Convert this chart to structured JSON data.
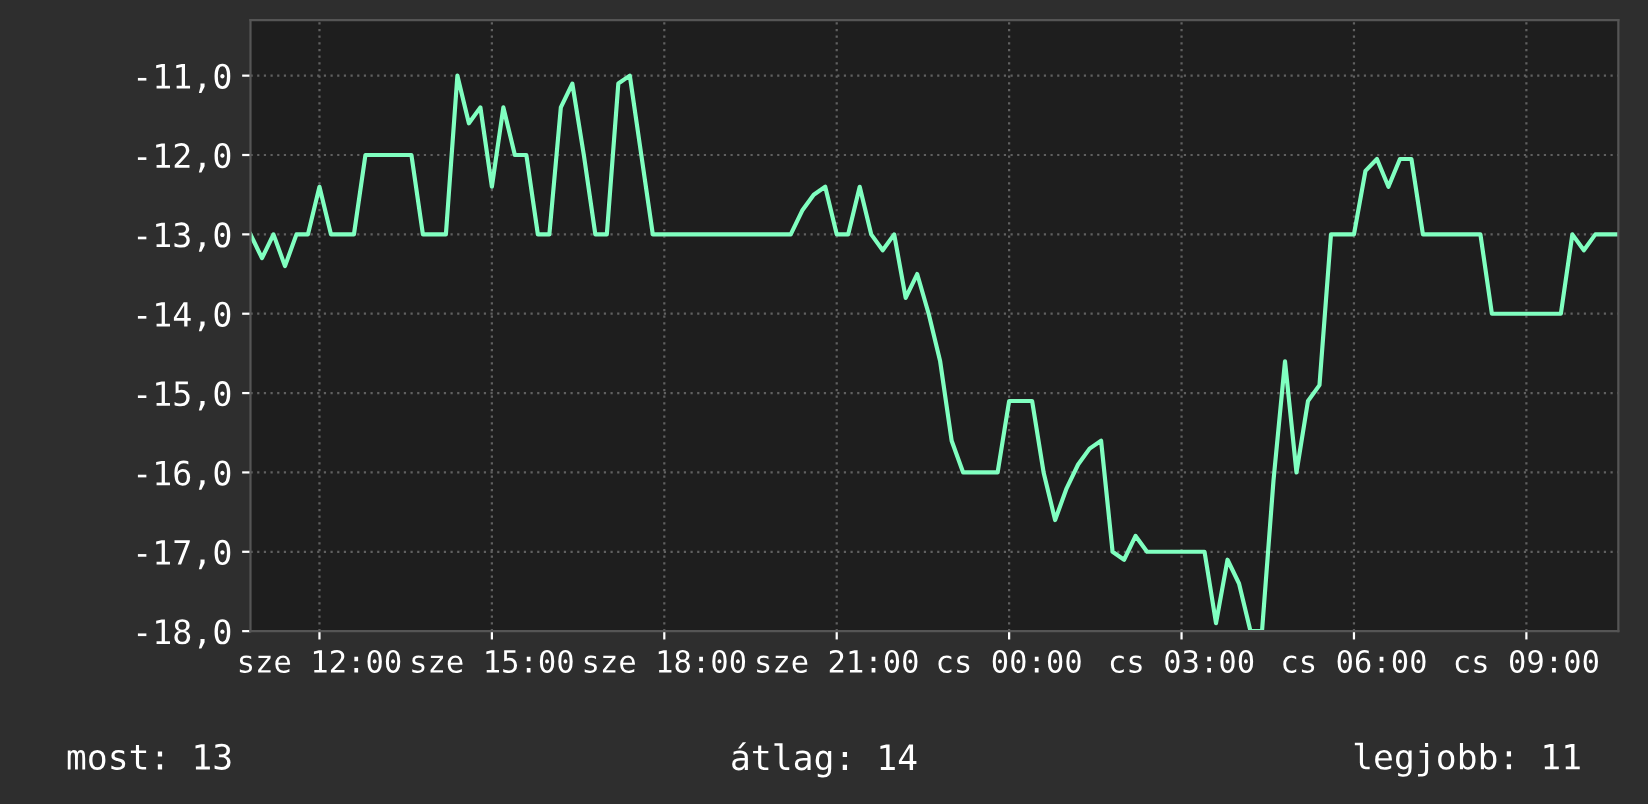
{
  "chart_data": {
    "type": "line",
    "color": "#80ffc0",
    "categories": [
      null,
      null,
      null,
      null,
      null,
      null,
      "sze 12:00",
      null,
      null,
      null,
      null,
      null,
      null,
      null,
      null,
      null,
      null,
      null,
      null,
      null,
      null,
      "sze 15:00",
      null,
      null,
      null,
      null,
      null,
      null,
      null,
      null,
      null,
      null,
      null,
      null,
      null,
      null,
      "sze 18:00",
      null,
      null,
      null,
      null,
      null,
      null,
      null,
      null,
      null,
      null,
      null,
      null,
      null,
      null,
      "sze 21:00",
      null,
      null,
      null,
      null,
      null,
      null,
      null,
      null,
      null,
      null,
      null,
      null,
      null,
      null,
      "cs 00:00",
      null,
      null,
      null,
      null,
      null,
      null,
      null,
      null,
      null,
      null,
      null,
      null,
      null,
      null,
      "cs 03:00",
      null,
      null,
      null,
      null,
      null,
      null,
      null,
      null,
      null,
      null,
      null,
      null,
      null,
      null,
      "cs 06:00",
      null,
      null,
      null,
      null,
      null,
      null,
      null,
      null,
      null,
      null,
      null,
      null,
      null,
      null,
      "cs 09:00",
      null,
      null,
      null,
      null,
      null,
      null,
      null,
      null
    ],
    "values": [
      -13.0,
      -13.3,
      -13.0,
      -13.4,
      -13.0,
      -13.0,
      -12.4,
      -13.0,
      -13.0,
      -13.0,
      -12.0,
      -12.0,
      -12.0,
      -12.0,
      -12.0,
      -13.0,
      -13.0,
      -13.0,
      -11.0,
      -11.6,
      -11.4,
      -12.4,
      -11.4,
      -12.0,
      -12.0,
      -13.0,
      -13.0,
      -11.4,
      -11.1,
      -12.0,
      -13.0,
      -13.0,
      -11.1,
      -11.0,
      -12.0,
      -13.0,
      -13.0,
      -13.0,
      -13.0,
      -13.0,
      -13.0,
      -13.0,
      -13.0,
      -13.0,
      -13.0,
      -13.0,
      -13.0,
      -13.0,
      -12.7,
      -12.5,
      -12.4,
      -13.0,
      -13.0,
      -12.4,
      -13.0,
      -13.2,
      -13.0,
      -13.8,
      -13.5,
      -14.0,
      -14.6,
      -15.6,
      -16.0,
      -16.0,
      -16.0,
      -16.0,
      -15.1,
      -15.1,
      -15.1,
      -16.0,
      -16.6,
      -16.2,
      -15.9,
      -15.7,
      -15.6,
      -17.0,
      -17.1,
      -16.8,
      -17.0,
      -17.0,
      -17.0,
      -17.0,
      -17.0,
      -17.0,
      -17.9,
      -17.1,
      -17.4,
      -18.0,
      -18.0,
      -16.1,
      -14.6,
      -16.0,
      -15.1,
      -14.9,
      -13.0,
      -13.0,
      -13.0,
      -12.2,
      -12.05,
      -12.4,
      -12.05,
      -12.05,
      -13.0,
      -13.0,
      -13.0,
      -13.0,
      -13.0,
      -13.0,
      -14.0,
      -14.0,
      -14.0,
      -14.0,
      -14.0,
      -14.0,
      -14.0,
      -13.0,
      -13.2,
      -13.0,
      -13.0,
      -13.0
    ],
    "ylim": [
      -18.0,
      -10.3
    ],
    "yticks": [
      {
        "value": -18,
        "label": "-18,0"
      },
      {
        "value": -17,
        "label": "-17,0"
      },
      {
        "value": -16,
        "label": "-16,0"
      },
      {
        "value": -15,
        "label": "-15,0"
      },
      {
        "value": -14,
        "label": "-14,0"
      },
      {
        "value": -13,
        "label": "-13,0"
      },
      {
        "value": -12,
        "label": "-12,0"
      },
      {
        "value": -11,
        "label": "-11,0"
      }
    ],
    "grid": true,
    "line_style": "solid",
    "annotations": [
      "most: 13",
      "átlag: 14",
      "legjobb: 11"
    ]
  }
}
